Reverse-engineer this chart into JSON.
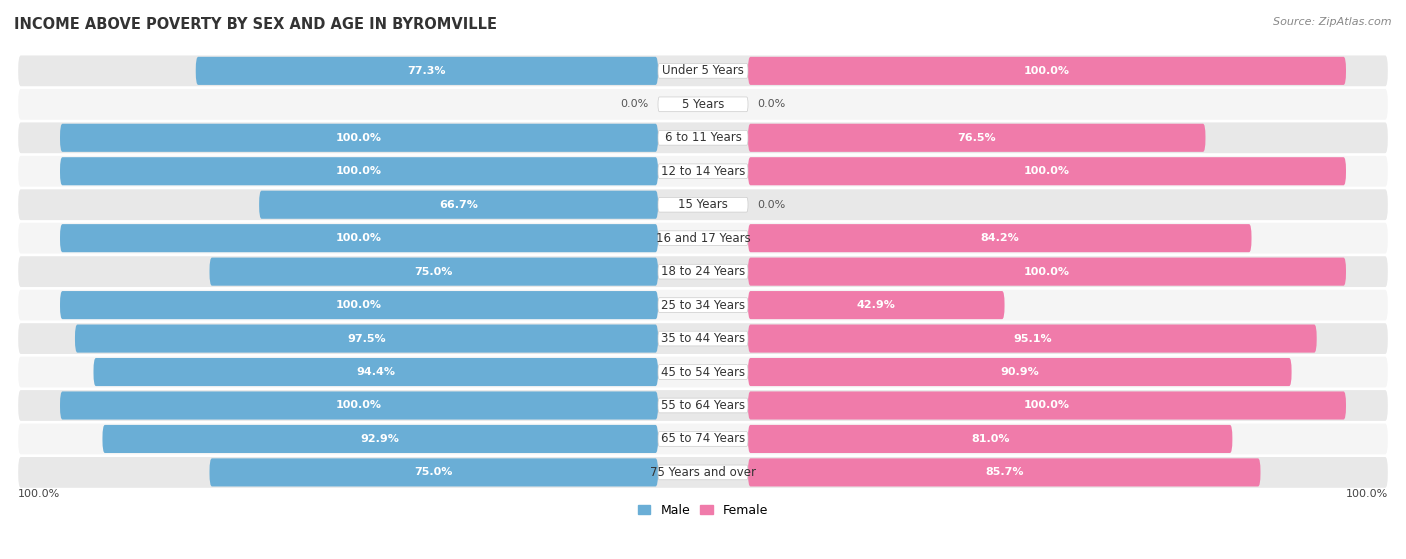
{
  "title": "INCOME ABOVE POVERTY BY SEX AND AGE IN BYROMVILLE",
  "source": "Source: ZipAtlas.com",
  "categories": [
    "Under 5 Years",
    "5 Years",
    "6 to 11 Years",
    "12 to 14 Years",
    "15 Years",
    "16 and 17 Years",
    "18 to 24 Years",
    "25 to 34 Years",
    "35 to 44 Years",
    "45 to 54 Years",
    "55 to 64 Years",
    "65 to 74 Years",
    "75 Years and over"
  ],
  "male_values": [
    77.3,
    0.0,
    100.0,
    100.0,
    66.7,
    100.0,
    75.0,
    100.0,
    97.5,
    94.4,
    100.0,
    92.9,
    75.0
  ],
  "female_values": [
    100.0,
    0.0,
    76.5,
    100.0,
    0.0,
    84.2,
    100.0,
    42.9,
    95.1,
    90.9,
    100.0,
    81.0,
    85.7
  ],
  "male_color": "#6aaed6",
  "female_color": "#f07baa",
  "male_light_color": "#c6dcef",
  "female_light_color": "#f9c8da",
  "row_colors": [
    "#e8e8e8",
    "#f5f5f5"
  ],
  "title_fontsize": 10.5,
  "label_fontsize": 8.5,
  "val_fontsize": 8.0,
  "legend_fontsize": 9.0
}
